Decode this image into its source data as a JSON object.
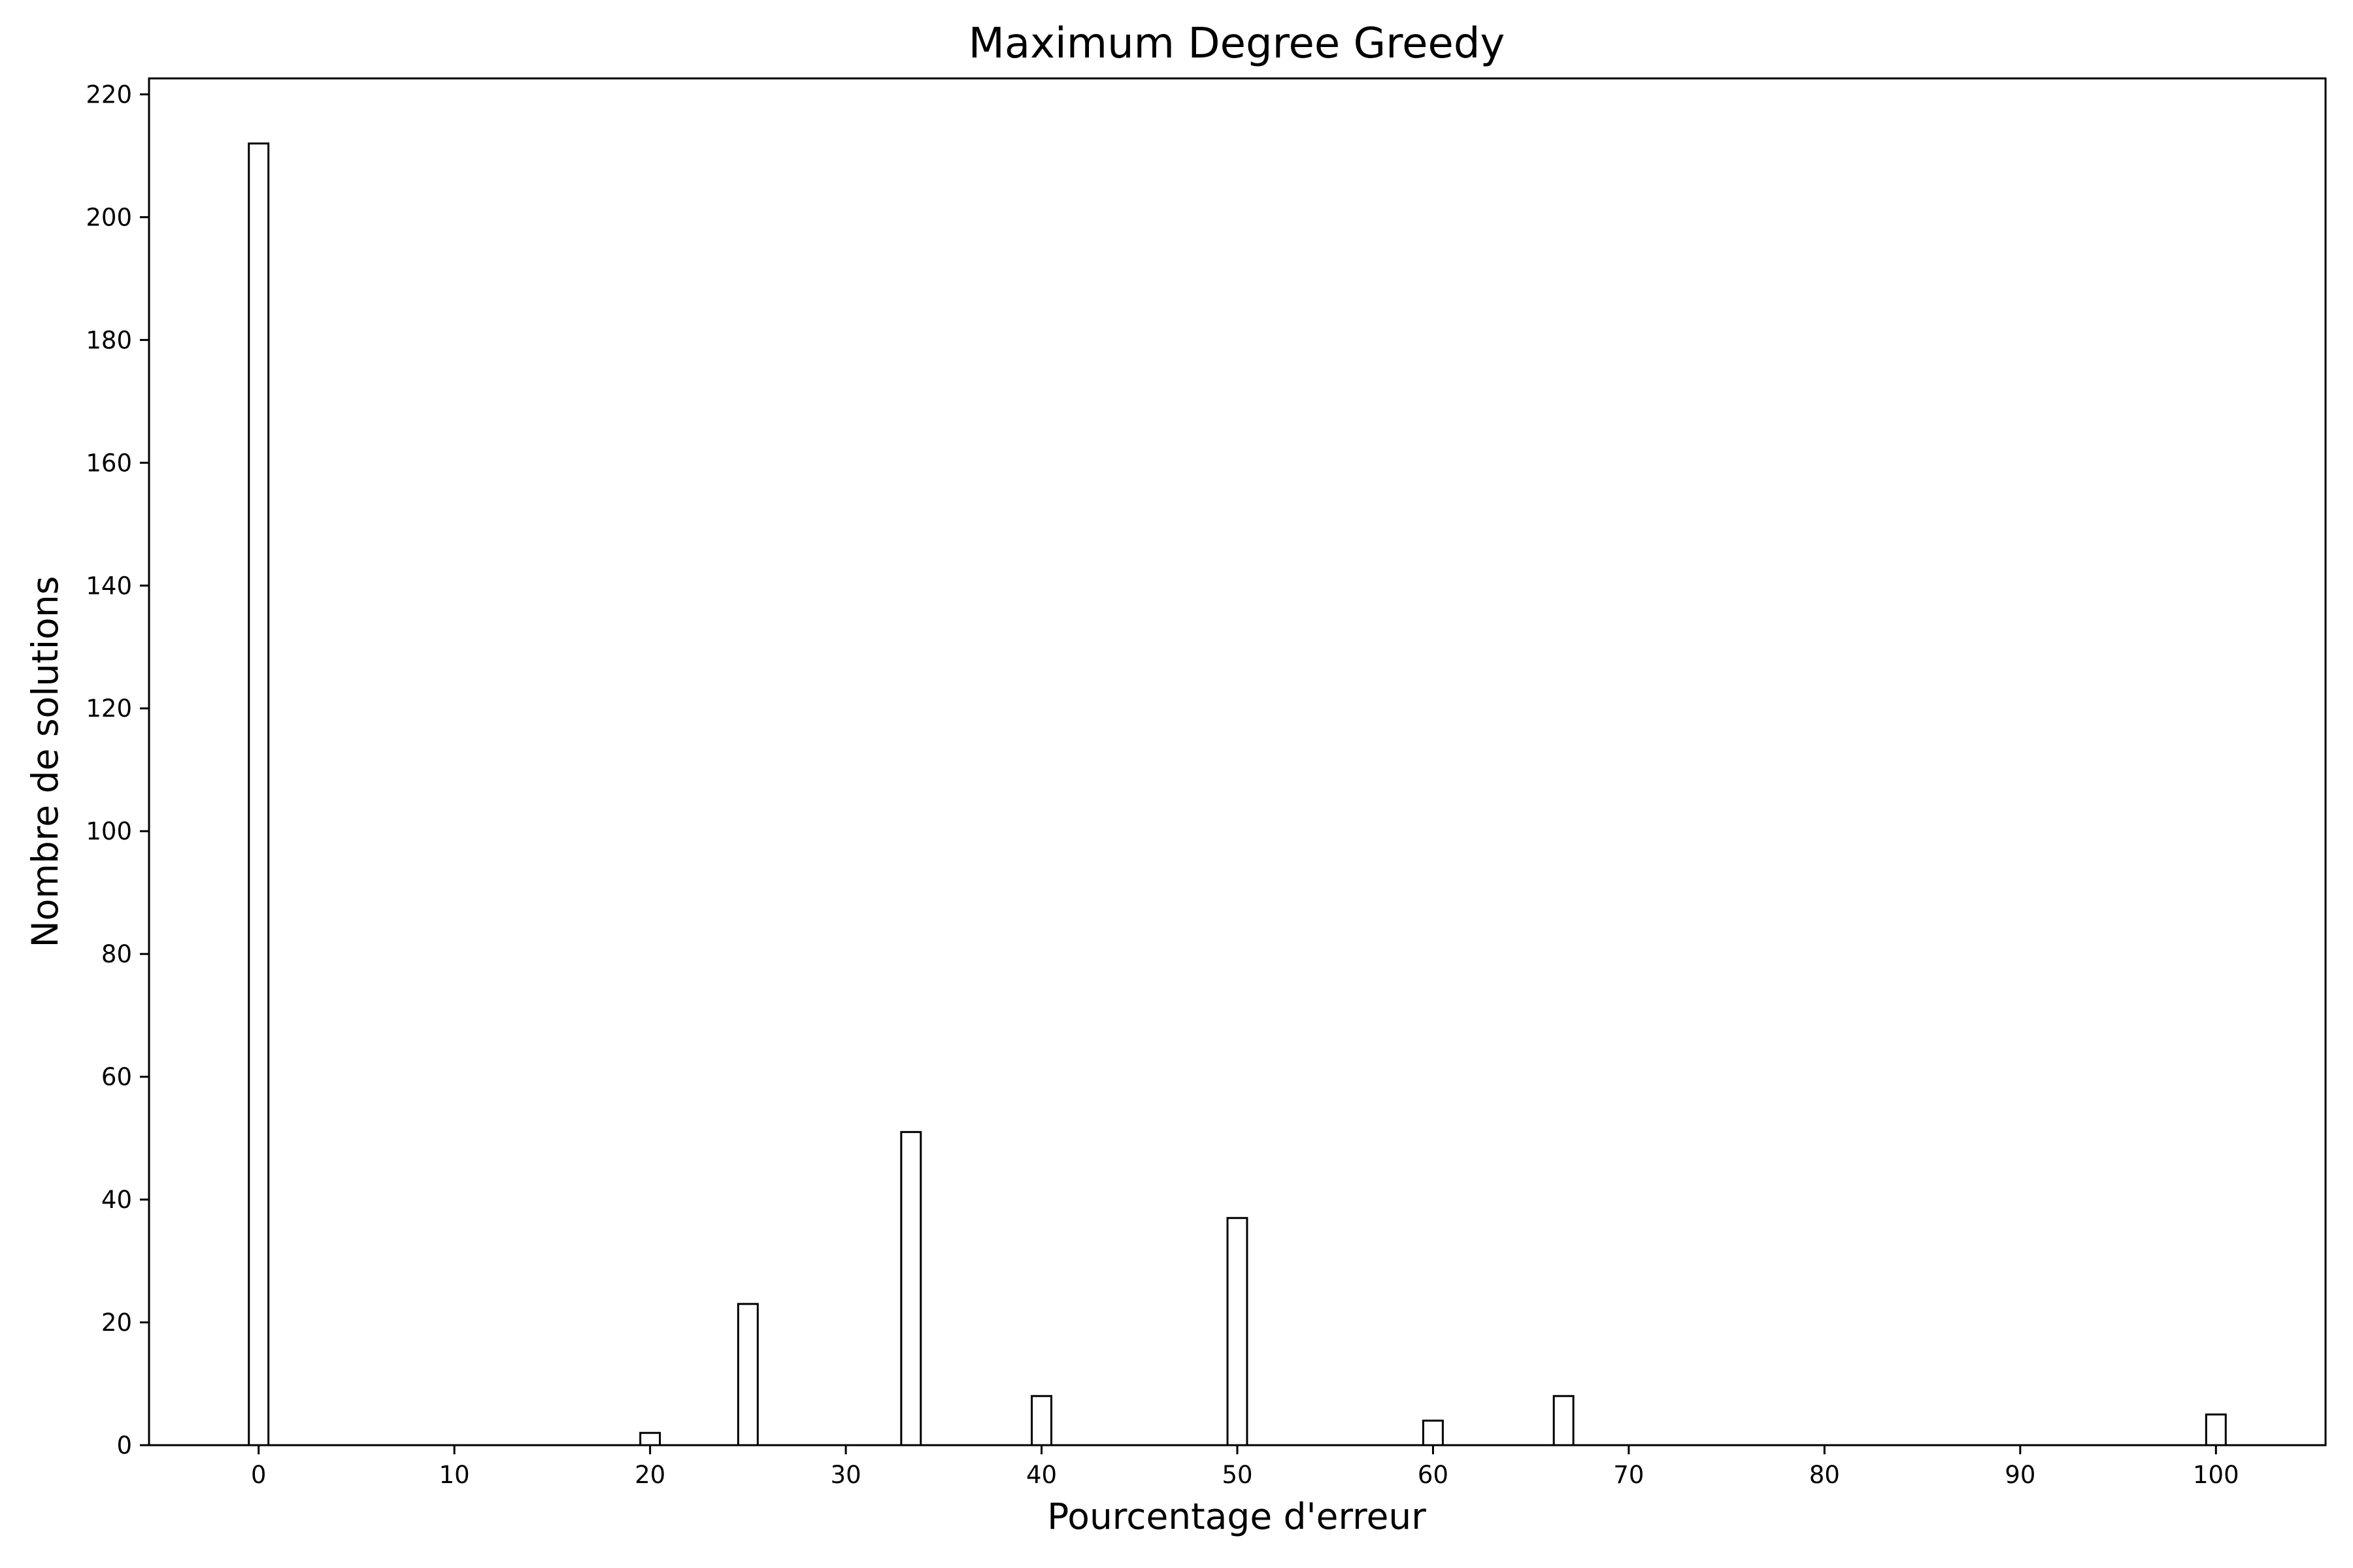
{
  "chart_data": {
    "type": "bar",
    "title": "Maximum Degree Greedy",
    "xlabel": "Pourcentage d'erreur",
    "ylabel": "Nombre de solutions",
    "x": [
      0,
      20,
      25,
      33.33,
      40,
      50,
      60,
      66.67,
      100
    ],
    "values": [
      212,
      2,
      23,
      51,
      8,
      37,
      4,
      8,
      5
    ],
    "xlim": [
      -5.6,
      105.6
    ],
    "ylim": [
      0,
      222.6
    ],
    "xticks": [
      0,
      10,
      20,
      30,
      40,
      50,
      60,
      70,
      80,
      90,
      100
    ],
    "yticks": [
      0,
      20,
      40,
      60,
      80,
      100,
      120,
      140,
      160,
      180,
      200,
      220
    ],
    "bar_width": 1,
    "bar_fill": "#ffffff",
    "bar_edge": "#000000",
    "grid": false,
    "legend": "none"
  }
}
